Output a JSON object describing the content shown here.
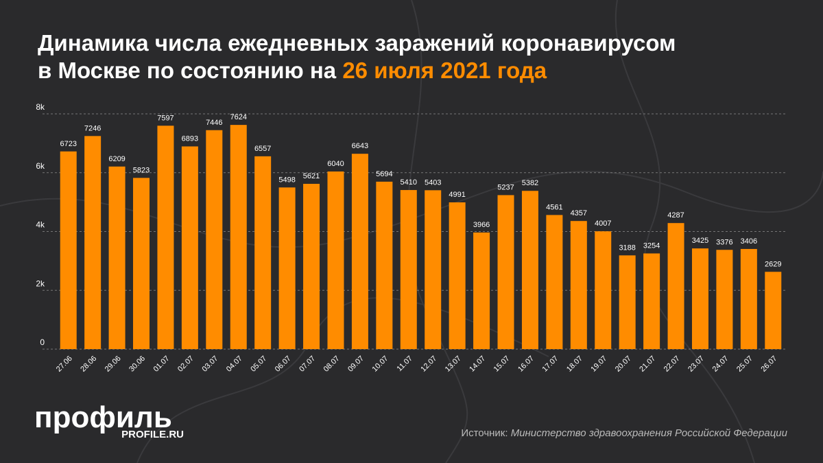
{
  "chart_data": {
    "type": "bar",
    "title": "Динамика числа ежедневных заражений коронавирусом в Москве по состоянию на ",
    "title_date": "26 июля 2021 года",
    "categories": [
      "27.06",
      "28.06",
      "29.06",
      "30.06",
      "01.07",
      "02.07",
      "03.07",
      "04.07",
      "05.07",
      "06.07",
      "07.07",
      "08.07",
      "09.07",
      "10.07",
      "11.07",
      "12.07",
      "13.07",
      "14.07",
      "15.07",
      "16.07",
      "17.07",
      "18.07",
      "19.07",
      "20.07",
      "21.07",
      "22.07",
      "23.07",
      "24.07",
      "25.07",
      "26.07"
    ],
    "values": [
      6723,
      7246,
      6209,
      5823,
      7597,
      6893,
      7446,
      7624,
      6557,
      5498,
      5621,
      6040,
      6643,
      5694,
      5410,
      5403,
      4991,
      3966,
      5237,
      5382,
      4561,
      4357,
      4007,
      3188,
      3254,
      4287,
      3425,
      3376,
      3406,
      2629
    ],
    "color": "#ff8c00",
    "ylim": [
      0,
      8000
    ],
    "yticks": [
      0,
      {
        "value": 2000,
        "label": "2k"
      },
      {
        "value": 4000,
        "label": "4k"
      },
      {
        "value": 6000,
        "label": "6k"
      },
      {
        "value": 8000,
        "label": "8k"
      }
    ],
    "grid": true,
    "source_label": "Источник:",
    "source": "Министерство здравоохранения Российской Федерации"
  },
  "logo": {
    "name": "профиль",
    "url": "PROFILE.RU"
  }
}
